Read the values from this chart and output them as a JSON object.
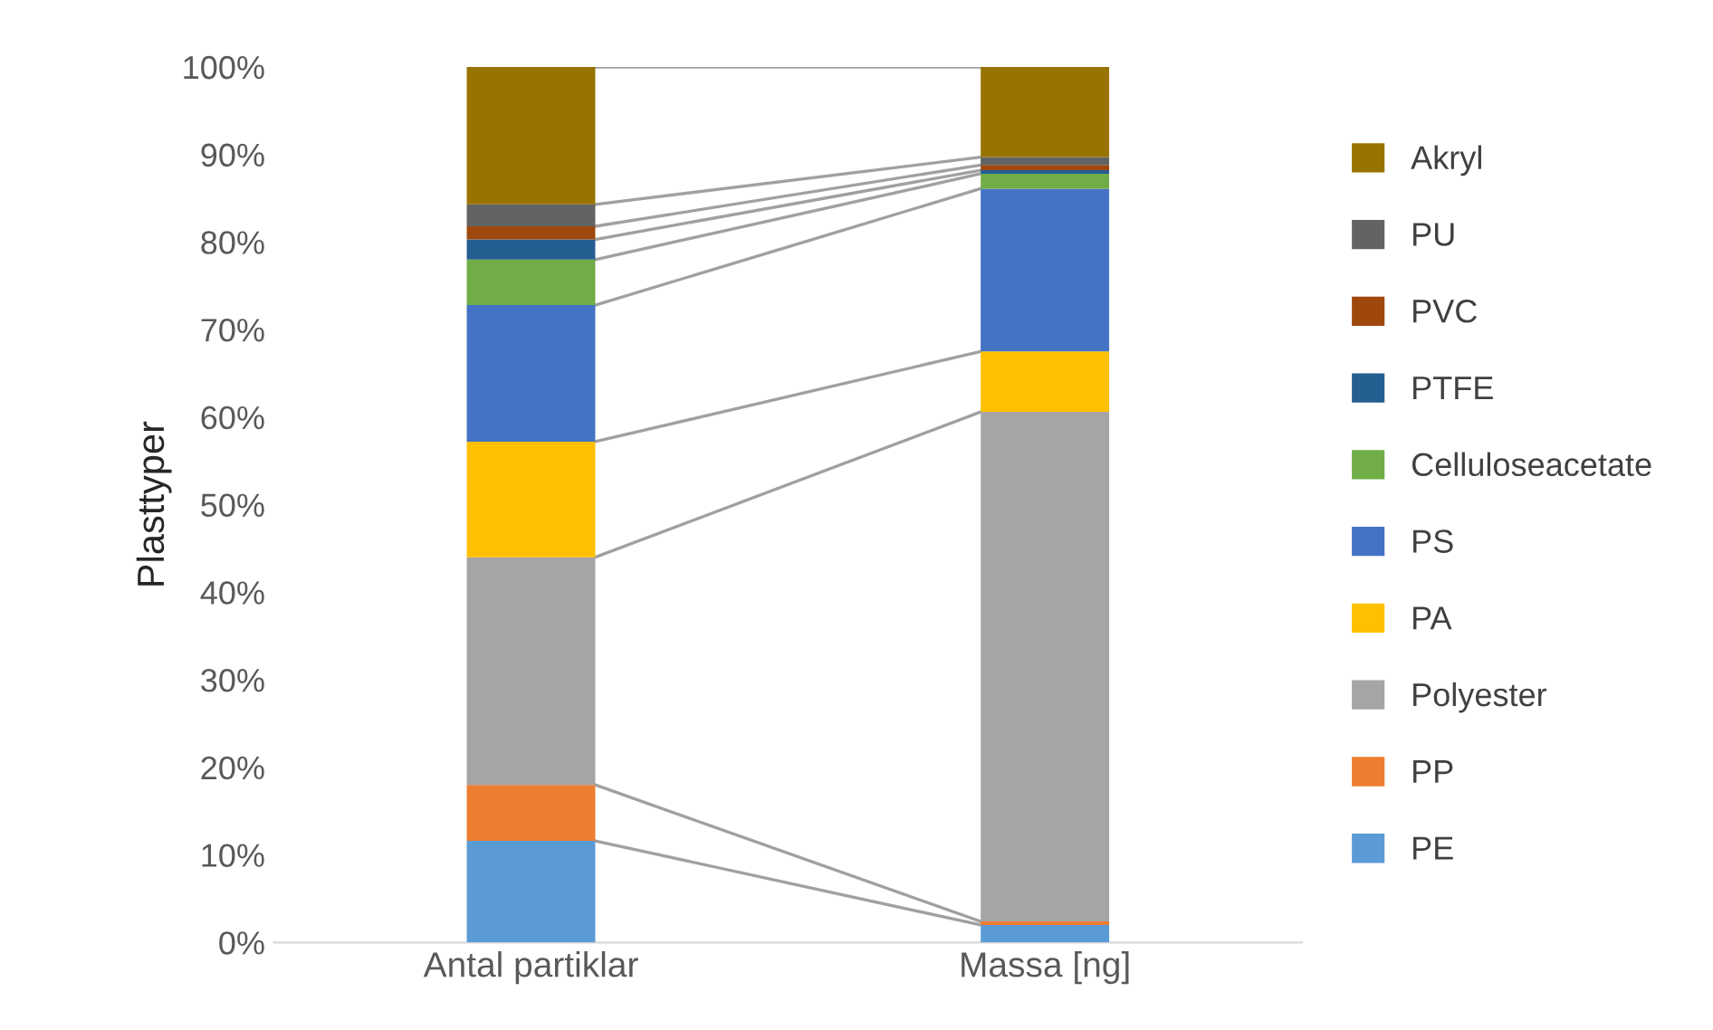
{
  "chart_data": {
    "type": "bar",
    "stacked": true,
    "ylabel": "Plasttyper",
    "categories": [
      "Antal partiklar",
      "Massa [ng]"
    ],
    "series": [
      {
        "name": "PE",
        "color": "#5b9bd5",
        "values": [
          11.6,
          2.0
        ]
      },
      {
        "name": "PP",
        "color": "#ed7d31",
        "values": [
          6.4,
          0.4
        ]
      },
      {
        "name": "Polyester",
        "color": "#a5a5a5",
        "values": [
          26.0,
          58.2
        ]
      },
      {
        "name": "PA",
        "color": "#ffc000",
        "values": [
          13.2,
          6.9
        ]
      },
      {
        "name": "PS",
        "color": "#4472c4",
        "values": [
          15.6,
          18.6
        ]
      },
      {
        "name": "Celluloseacetate",
        "color": "#70ad47",
        "values": [
          5.2,
          1.7
        ]
      },
      {
        "name": "PTFE",
        "color": "#255e91",
        "values": [
          2.3,
          0.4
        ]
      },
      {
        "name": "PVC",
        "color": "#9e480e",
        "values": [
          1.5,
          0.6
        ]
      },
      {
        "name": "PU",
        "color": "#636363",
        "values": [
          2.5,
          0.9
        ]
      },
      {
        "name": "Akryl",
        "color": "#997300",
        "values": [
          15.7,
          10.3
        ]
      }
    ],
    "ylim": [
      0,
      100
    ],
    "yticks": [
      {
        "value": 0,
        "label": "0%"
      },
      {
        "value": 10,
        "label": "10%"
      },
      {
        "value": 20,
        "label": "20%"
      },
      {
        "value": 30,
        "label": "30%"
      },
      {
        "value": 40,
        "label": "40%"
      },
      {
        "value": 50,
        "label": "50%"
      },
      {
        "value": 60,
        "label": "60%"
      },
      {
        "value": 70,
        "label": "70%"
      },
      {
        "value": 80,
        "label": "80%"
      },
      {
        "value": 90,
        "label": "90%"
      },
      {
        "value": 100,
        "label": "100%"
      }
    ],
    "grid": false,
    "legend": "right"
  }
}
